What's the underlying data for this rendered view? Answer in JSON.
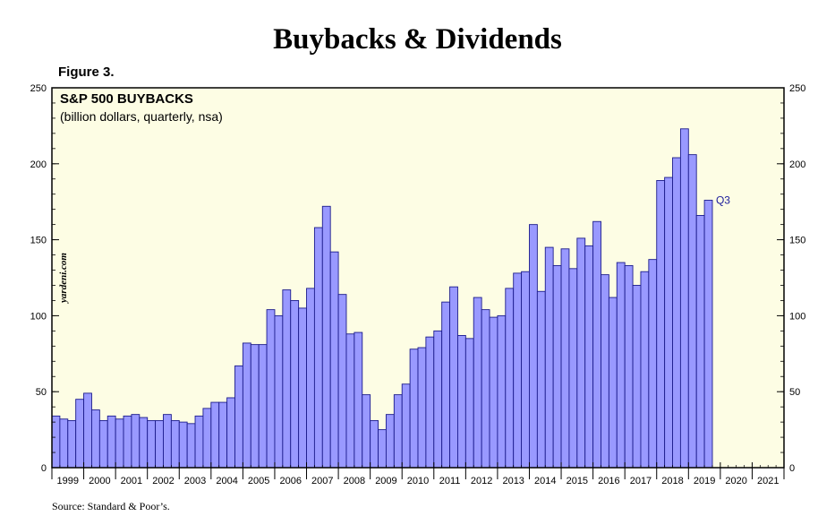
{
  "header": {
    "title": "Buybacks & Dividends",
    "figure_label": "Figure 3."
  },
  "footer": {
    "source": "Source: Standard & Poor’s."
  },
  "watermark": "yardeni.com",
  "chart_data": {
    "type": "bar",
    "title": "S&P 500 BUYBACKS",
    "subtitle": "(billion dollars, quarterly, nsa)",
    "annotation": "Q3",
    "ylim": [
      0,
      250
    ],
    "yticks": [
      0,
      50,
      100,
      150,
      200,
      250
    ],
    "x_start_year": 1999,
    "x_end_year": 2021,
    "year_labels": [
      "1999",
      "2000",
      "2001",
      "2002",
      "2003",
      "2004",
      "2005",
      "2006",
      "2007",
      "2008",
      "2009",
      "2010",
      "2011",
      "2012",
      "2013",
      "2014",
      "2015",
      "2016",
      "2017",
      "2018",
      "2019",
      "2020",
      "2021"
    ],
    "categories": [
      "1999 Q1",
      "1999 Q2",
      "1999 Q3",
      "1999 Q4",
      "2000 Q1",
      "2000 Q2",
      "2000 Q3",
      "2000 Q4",
      "2001 Q1",
      "2001 Q2",
      "2001 Q3",
      "2001 Q4",
      "2002 Q1",
      "2002 Q2",
      "2002 Q3",
      "2002 Q4",
      "2003 Q1",
      "2003 Q2",
      "2003 Q3",
      "2003 Q4",
      "2004 Q1",
      "2004 Q2",
      "2004 Q3",
      "2004 Q4",
      "2005 Q1",
      "2005 Q2",
      "2005 Q3",
      "2005 Q4",
      "2006 Q1",
      "2006 Q2",
      "2006 Q3",
      "2006 Q4",
      "2007 Q1",
      "2007 Q2",
      "2007 Q3",
      "2007 Q4",
      "2008 Q1",
      "2008 Q2",
      "2008 Q3",
      "2008 Q4",
      "2009 Q1",
      "2009 Q2",
      "2009 Q3",
      "2009 Q4",
      "2010 Q1",
      "2010 Q2",
      "2010 Q3",
      "2010 Q4",
      "2011 Q1",
      "2011 Q2",
      "2011 Q3",
      "2011 Q4",
      "2012 Q1",
      "2012 Q2",
      "2012 Q3",
      "2012 Q4",
      "2013 Q1",
      "2013 Q2",
      "2013 Q3",
      "2013 Q4",
      "2014 Q1",
      "2014 Q2",
      "2014 Q3",
      "2014 Q4",
      "2015 Q1",
      "2015 Q2",
      "2015 Q3",
      "2015 Q4",
      "2016 Q1",
      "2016 Q2",
      "2016 Q3",
      "2016 Q4",
      "2017 Q1",
      "2017 Q2",
      "2017 Q3",
      "2017 Q4",
      "2018 Q1",
      "2018 Q2",
      "2018 Q3",
      "2018 Q4",
      "2019 Q1",
      "2019 Q2",
      "2019 Q3"
    ],
    "values": [
      34,
      32,
      31,
      45,
      49,
      38,
      31,
      34,
      32,
      34,
      35,
      33,
      31,
      31,
      35,
      31,
      30,
      29,
      34,
      39,
      43,
      43,
      46,
      67,
      82,
      81,
      81,
      104,
      100,
      117,
      110,
      105,
      118,
      158,
      172,
      142,
      114,
      88,
      89,
      48,
      31,
      25,
      35,
      48,
      55,
      78,
      79,
      86,
      90,
      109,
      119,
      87,
      85,
      112,
      104,
      99,
      100,
      118,
      128,
      129,
      160,
      116,
      145,
      133,
      144,
      131,
      151,
      146,
      162,
      127,
      112,
      135,
      133,
      120,
      129,
      137,
      189,
      191,
      204,
      223,
      206,
      166,
      176
    ],
    "grid": false,
    "colors": {
      "plot_background": "#fdfde4",
      "bar_fill": "#9999ff",
      "bar_stroke": "#1c1c8c",
      "annotation": "#1c1c9c",
      "axis": "#000000"
    }
  }
}
